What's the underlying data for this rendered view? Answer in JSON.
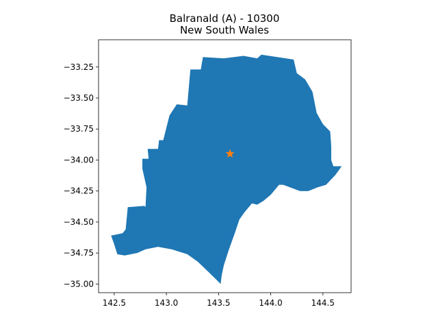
{
  "chart_data": {
    "type": "map",
    "title": "Balranald (A) - 10300",
    "subtitle": "New South Wales",
    "xlabel": "",
    "ylabel": "",
    "xlim": [
      142.35,
      144.77
    ],
    "ylim": [
      -35.07,
      -33.03
    ],
    "x_ticks": [
      142.5,
      143.0,
      143.5,
      144.0,
      144.5
    ],
    "x_tick_labels": [
      "142.5",
      "143.0",
      "143.5",
      "144.0",
      "144.5"
    ],
    "y_ticks": [
      -33.25,
      -33.5,
      -33.75,
      -34.0,
      -34.25,
      -34.5,
      -34.75,
      -35.0
    ],
    "y_tick_labels": [
      "−33.25",
      "−33.50",
      "−33.75",
      "−34.00",
      "−34.25",
      "−34.50",
      "−34.75",
      "−35.00"
    ],
    "grid": false,
    "region_color": "#1f77b4",
    "marker_color": "#ff7f0e",
    "marker": {
      "shape": "star",
      "lon": 143.61,
      "lat": -33.95
    },
    "region_outline": [
      [
        142.47,
        -34.61
      ],
      [
        142.58,
        -34.59
      ],
      [
        142.61,
        -34.56
      ],
      [
        142.63,
        -34.38
      ],
      [
        142.79,
        -34.37
      ],
      [
        142.8,
        -34.38
      ],
      [
        142.81,
        -34.22
      ],
      [
        142.77,
        -34.07
      ],
      [
        142.77,
        -33.99
      ],
      [
        142.83,
        -33.99
      ],
      [
        142.82,
        -33.91
      ],
      [
        142.92,
        -33.91
      ],
      [
        142.93,
        -33.84
      ],
      [
        142.97,
        -33.84
      ],
      [
        143.03,
        -33.64
      ],
      [
        143.1,
        -33.55
      ],
      [
        143.2,
        -33.56
      ],
      [
        143.23,
        -33.27
      ],
      [
        143.33,
        -33.27
      ],
      [
        143.35,
        -33.17
      ],
      [
        143.55,
        -33.18
      ],
      [
        143.74,
        -33.16
      ],
      [
        143.87,
        -33.18
      ],
      [
        143.91,
        -33.15
      ],
      [
        144.22,
        -33.19
      ],
      [
        144.25,
        -33.3
      ],
      [
        144.33,
        -33.35
      ],
      [
        144.4,
        -33.45
      ],
      [
        144.44,
        -33.62
      ],
      [
        144.5,
        -33.71
      ],
      [
        144.57,
        -33.77
      ],
      [
        144.58,
        -33.89
      ],
      [
        144.58,
        -34.0
      ],
      [
        144.6,
        -34.05
      ],
      [
        144.68,
        -34.05
      ],
      [
        144.62,
        -34.12
      ],
      [
        144.53,
        -34.2
      ],
      [
        144.45,
        -34.22
      ],
      [
        144.36,
        -34.25
      ],
      [
        144.28,
        -34.25
      ],
      [
        144.12,
        -34.2
      ],
      [
        144.08,
        -34.2
      ],
      [
        144.0,
        -34.28
      ],
      [
        143.93,
        -34.33
      ],
      [
        143.87,
        -34.36
      ],
      [
        143.82,
        -34.35
      ],
      [
        143.75,
        -34.42
      ],
      [
        143.7,
        -34.48
      ],
      [
        143.66,
        -34.58
      ],
      [
        143.63,
        -34.65
      ],
      [
        143.6,
        -34.72
      ],
      [
        143.55,
        -34.85
      ],
      [
        143.53,
        -34.93
      ],
      [
        143.52,
        -35.0
      ],
      [
        143.46,
        -34.95
      ],
      [
        143.4,
        -34.9
      ],
      [
        143.3,
        -34.82
      ],
      [
        143.2,
        -34.76
      ],
      [
        143.05,
        -34.72
      ],
      [
        142.92,
        -34.7
      ],
      [
        142.8,
        -34.72
      ],
      [
        142.72,
        -34.75
      ],
      [
        142.6,
        -34.77
      ],
      [
        142.53,
        -34.76
      ],
      [
        142.5,
        -34.68
      ],
      [
        142.47,
        -34.61
      ]
    ]
  }
}
